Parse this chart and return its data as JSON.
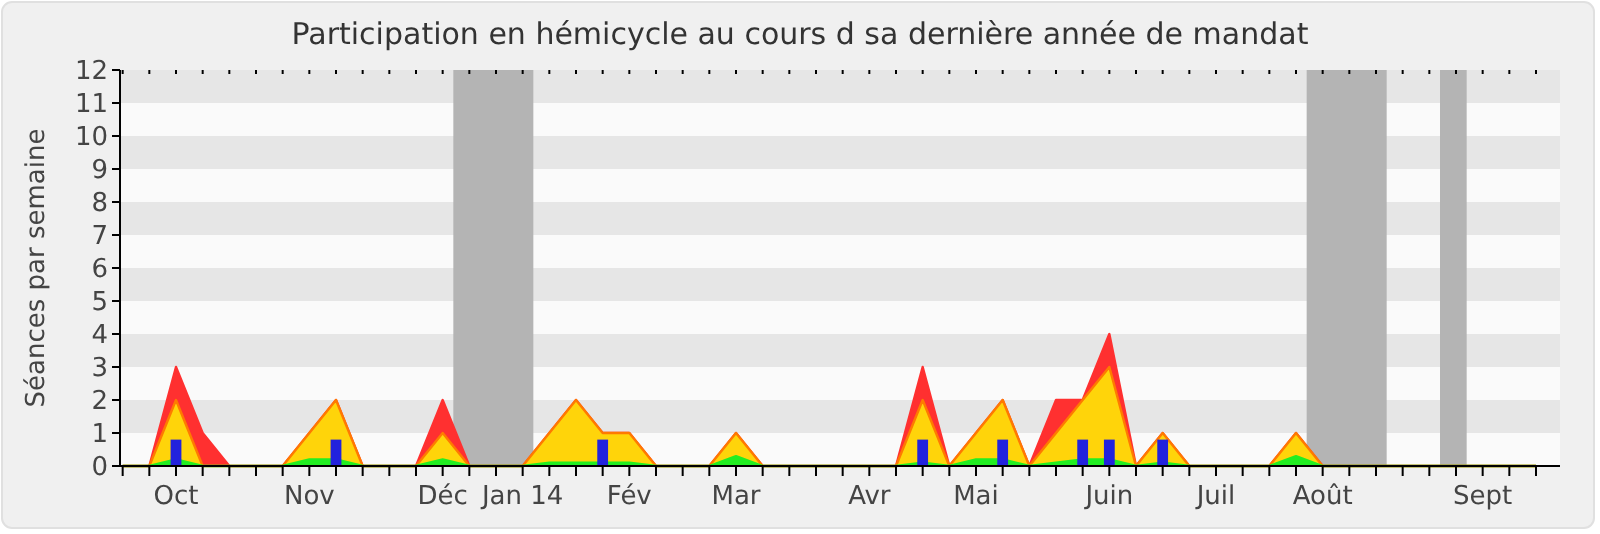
{
  "chart_data": {
    "type": "area",
    "title": "Participation en hémicycle au cours d sa dernière année de mandat",
    "ylabel": "Séances par semaine",
    "categories": [
      null,
      null,
      "Oct",
      null,
      null,
      null,
      null,
      "Nov",
      null,
      null,
      null,
      null,
      "Déc",
      null,
      null,
      "Jan 14",
      null,
      null,
      null,
      "Fév",
      null,
      null,
      null,
      "Mar",
      null,
      null,
      null,
      null,
      "Avr",
      null,
      null,
      null,
      "Mai",
      null,
      null,
      null,
      null,
      "Juin",
      null,
      null,
      null,
      "Juil",
      null,
      null,
      null,
      "Août",
      null,
      null,
      null,
      null,
      null,
      "Sept",
      null,
      null
    ],
    "ylim": [
      0,
      12
    ],
    "yticks": [
      0,
      1,
      2,
      3,
      4,
      5,
      6,
      7,
      8,
      9,
      10,
      11,
      12
    ],
    "series": [
      {
        "color": "#ff3030",
        "values": [
          0,
          0,
          3,
          1,
          0,
          0,
          0,
          1,
          2,
          0,
          0,
          0,
          2,
          0,
          0,
          0,
          1,
          2,
          1,
          1,
          0,
          0,
          0,
          1,
          0,
          0,
          0,
          0,
          0,
          0,
          3,
          0,
          1,
          2,
          0,
          2,
          2,
          4,
          0,
          1,
          0,
          0,
          0,
          0,
          1,
          0,
          0,
          0,
          0,
          0,
          0,
          0,
          0,
          0
        ]
      },
      {
        "color": "#ffd40a",
        "values": [
          0,
          0,
          2,
          0,
          0,
          0,
          0,
          1,
          2,
          0,
          0,
          0,
          1,
          0,
          0,
          0,
          1,
          2,
          1,
          1,
          0,
          0,
          0,
          1,
          0,
          0,
          0,
          0,
          0,
          0,
          2,
          0,
          1,
          2,
          0,
          1,
          2,
          3,
          0,
          1,
          0,
          0,
          0,
          0,
          1,
          0,
          0,
          0,
          0,
          0,
          0,
          0,
          0,
          0
        ]
      },
      {
        "color": "#22ee22",
        "values": [
          0,
          0,
          0.2,
          0,
          0,
          0,
          0,
          0.2,
          0.2,
          0,
          0,
          0,
          0.2,
          0,
          0,
          0,
          0.1,
          0.1,
          0.1,
          0.1,
          0,
          0,
          0,
          0.3,
          0,
          0,
          0,
          0,
          0,
          0,
          0.1,
          0,
          0.2,
          0.2,
          0,
          0.1,
          0.2,
          0.2,
          0,
          0.1,
          0,
          0,
          0,
          0,
          0.3,
          0,
          0,
          0,
          0,
          0,
          0,
          0,
          0,
          0
        ]
      },
      {
        "type": "bar",
        "color": "#2222dd",
        "values": [
          null,
          null,
          0.8,
          null,
          null,
          null,
          null,
          null,
          0.8,
          null,
          null,
          null,
          null,
          null,
          null,
          null,
          null,
          null,
          0.8,
          null,
          null,
          null,
          null,
          null,
          null,
          null,
          null,
          null,
          null,
          null,
          0.8,
          null,
          null,
          0.8,
          null,
          null,
          0.8,
          0.8,
          null,
          0.8,
          null,
          null,
          null,
          null,
          null,
          null,
          null,
          null,
          null,
          null,
          null,
          null,
          null,
          null
        ]
      }
    ]
  }
}
